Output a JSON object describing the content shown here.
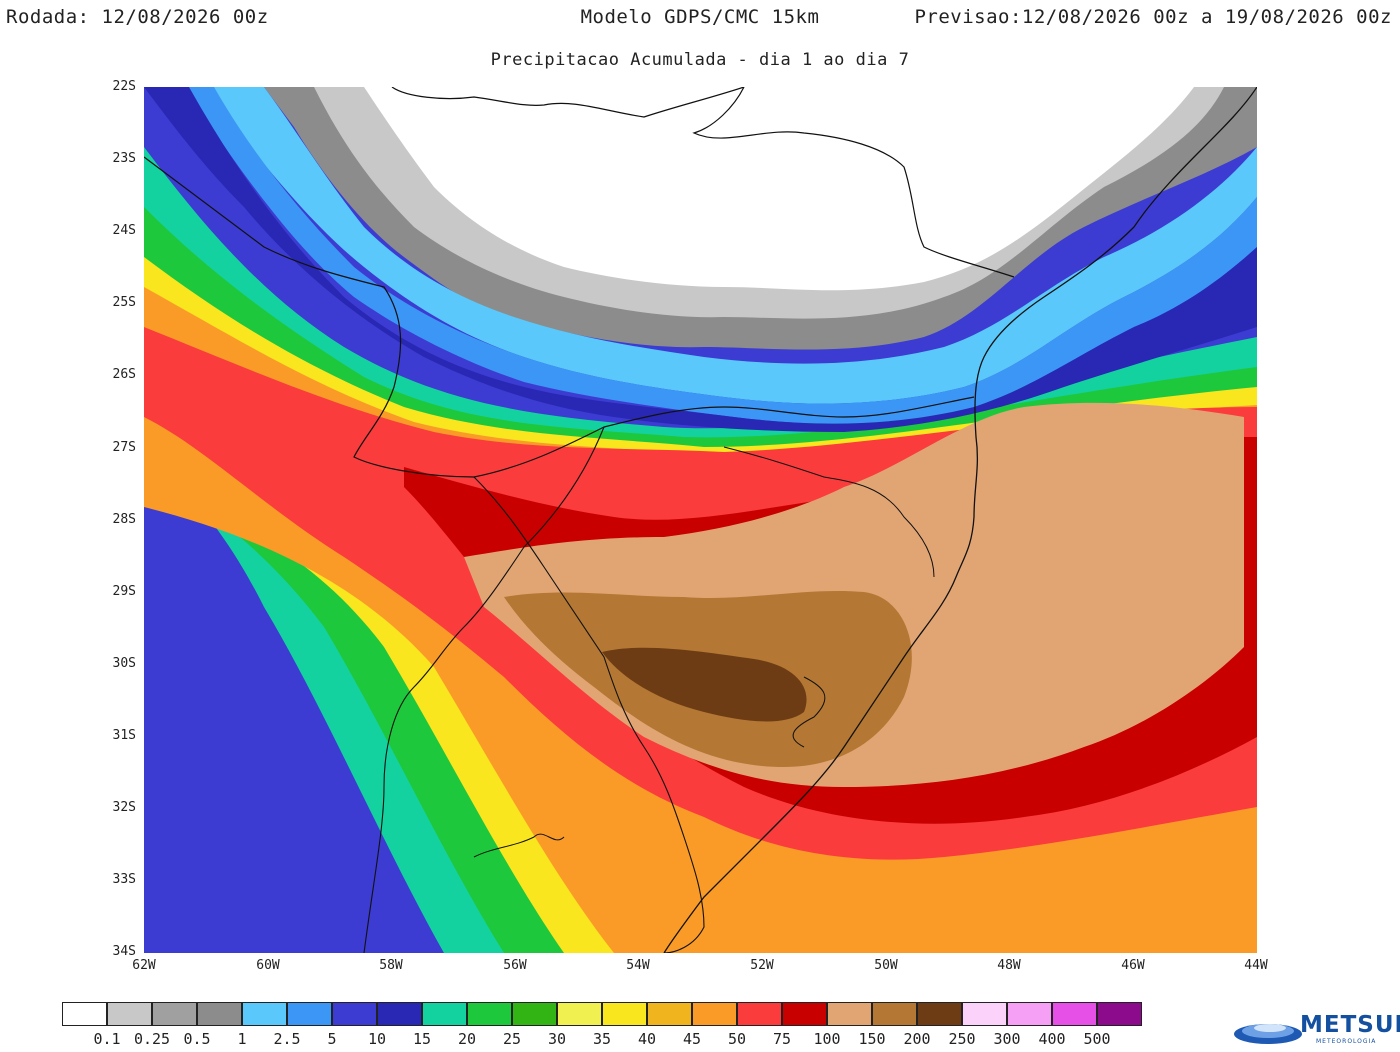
{
  "header": {
    "left": "Rodada: 12/08/2026 00z",
    "center": "Modelo GDPS/CMC 15km",
    "right": "Previsao:12/08/2026 00z a 19/08/2026 00z",
    "subtitle": "Precipitacao Acumulada - dia 1 ao dia 7"
  },
  "map": {
    "lat_labels": [
      "22S",
      "23S",
      "24S",
      "25S",
      "26S",
      "27S",
      "28S",
      "29S",
      "30S",
      "31S",
      "32S",
      "33S",
      "34S"
    ],
    "lon_labels": [
      "62W",
      "60W",
      "58W",
      "56W",
      "54W",
      "52W",
      "50W",
      "48W",
      "46W",
      "44W"
    ],
    "lat_range": [
      -34,
      -22
    ],
    "lon_range": [
      -62,
      -44
    ]
  },
  "legend": {
    "labels": [
      "0.1",
      "0.25",
      "0.5",
      "1",
      "2.5",
      "5",
      "10",
      "15",
      "20",
      "25",
      "30",
      "35",
      "40",
      "45",
      "50",
      "75",
      "100",
      "150",
      "200",
      "250",
      "300",
      "400",
      "500"
    ],
    "colors": [
      "#ffffff",
      "#c8c8c8",
      "#a0a0a0",
      "#8c8c8c",
      "#5ac8fa",
      "#3c96f5",
      "#3c3cd2",
      "#2828b4",
      "#14d2a0",
      "#1ec83c",
      "#32b414",
      "#f0f050",
      "#fae61e",
      "#f0b41e",
      "#fa9b28",
      "#fa3c3c",
      "#c80000",
      "#e1a574",
      "#b47834",
      "#6e3c14",
      "#fad2fa",
      "#f5a0f5",
      "#e650e6",
      "#8c0a8c"
    ]
  },
  "logo": {
    "name": "METSUL",
    "sub": "METEOROLOGIA"
  }
}
